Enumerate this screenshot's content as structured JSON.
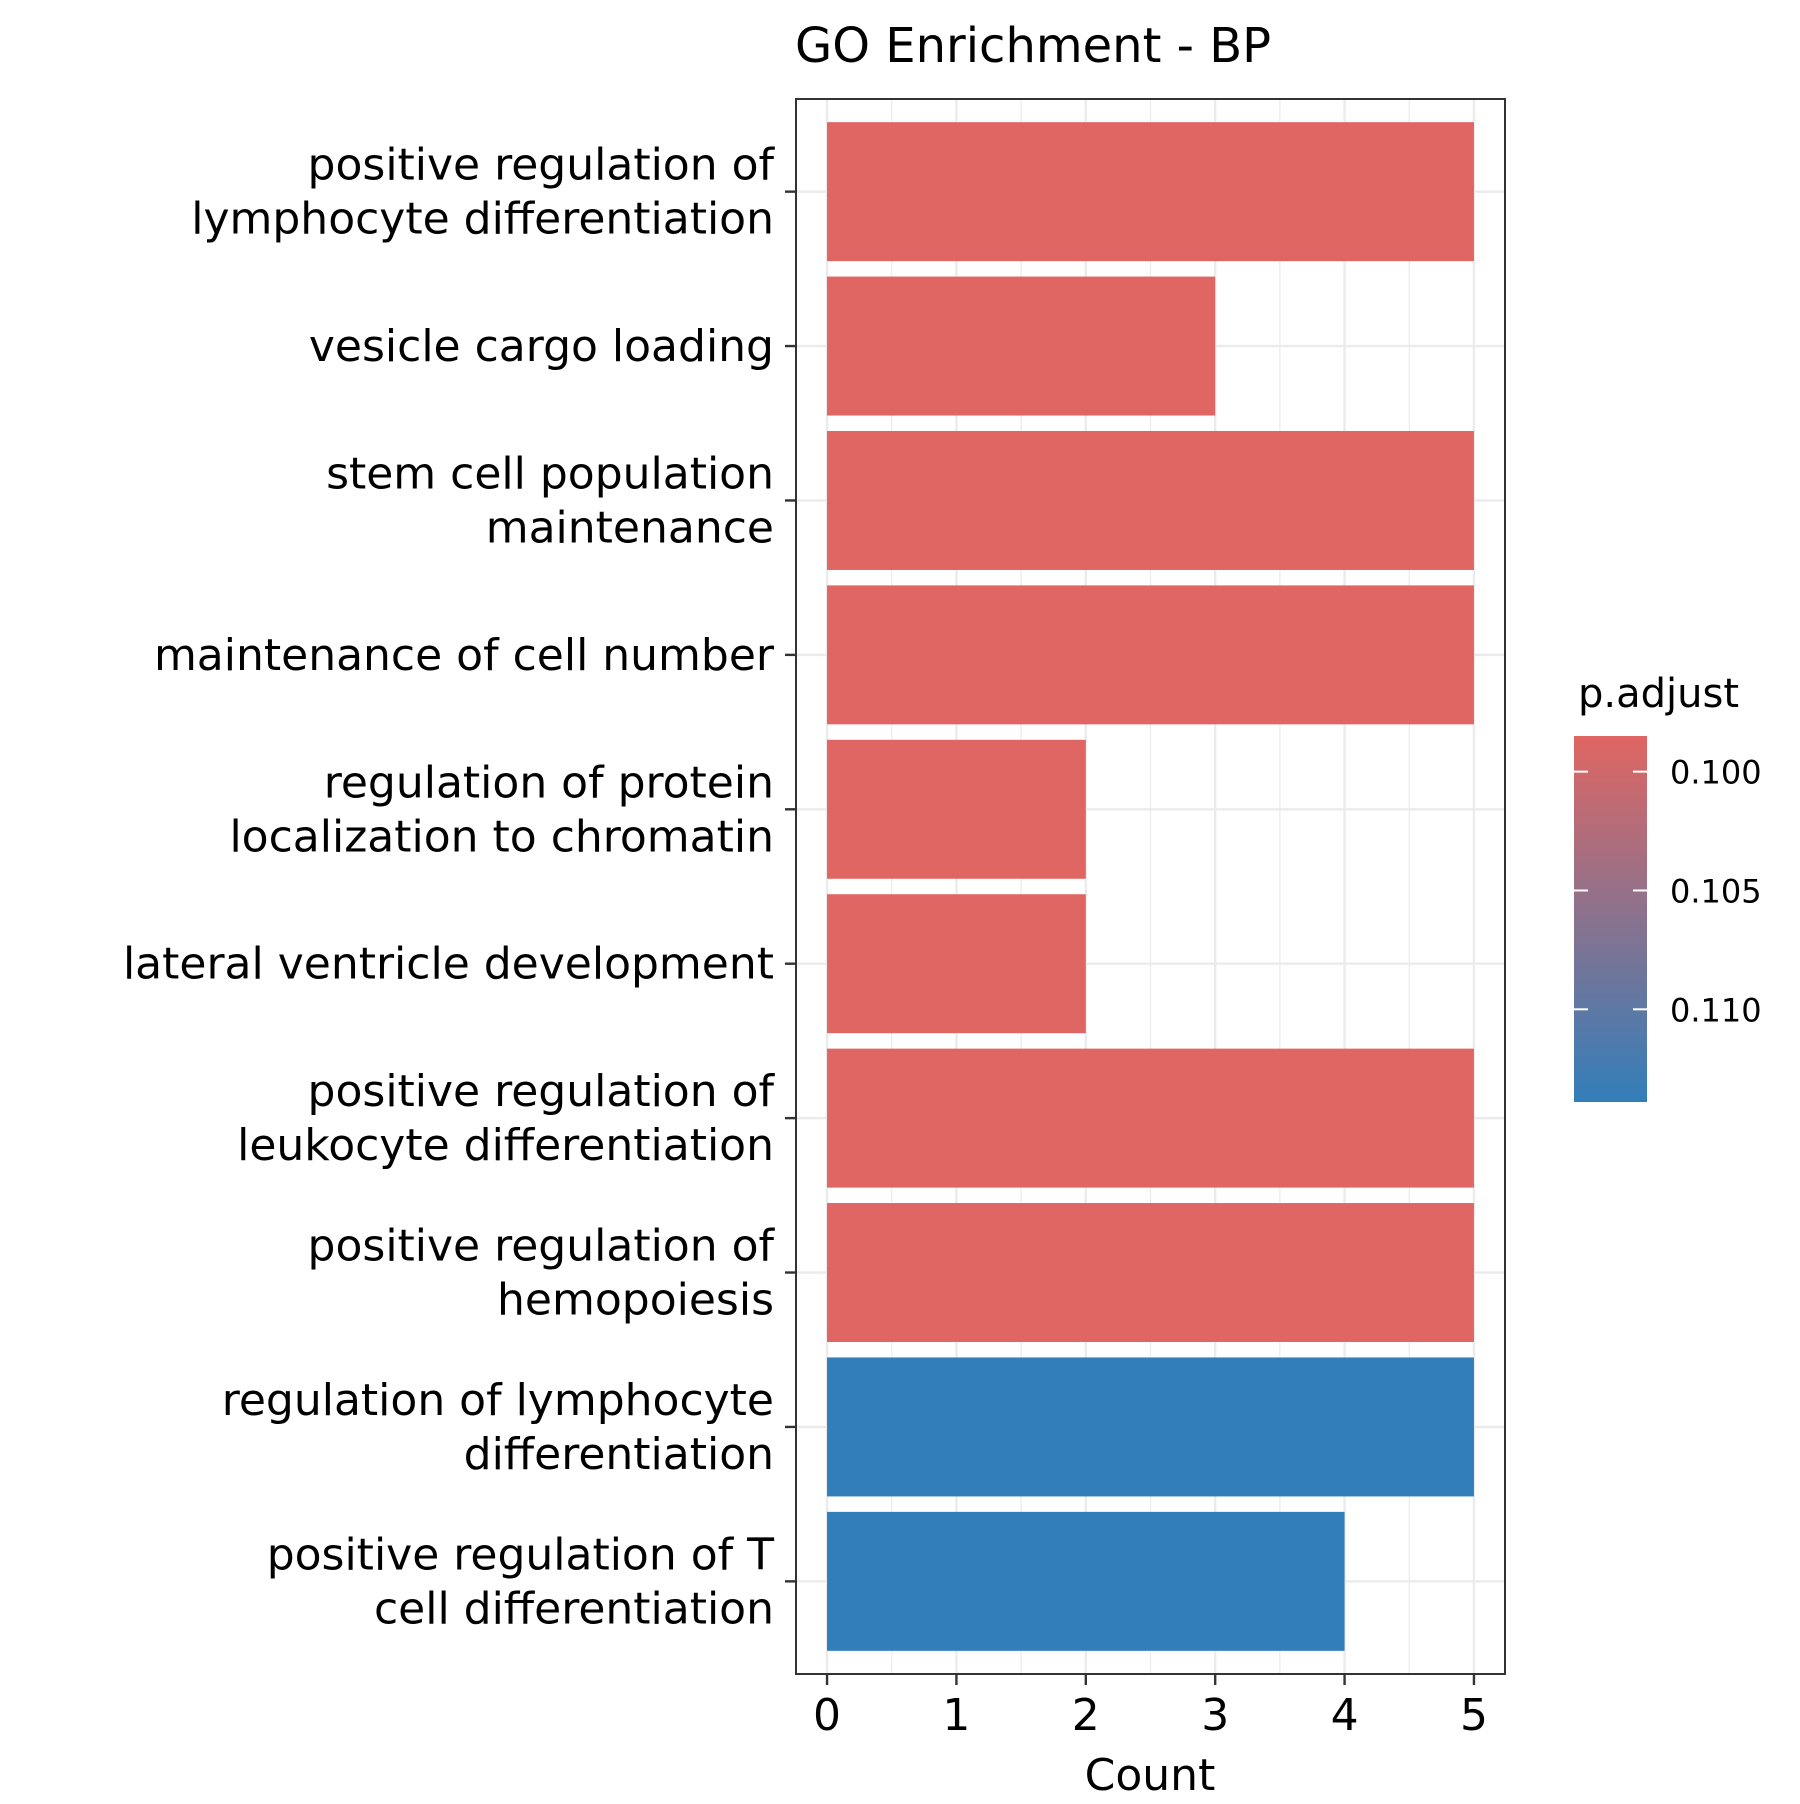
{
  "chart_data": {
    "type": "bar",
    "orientation": "horizontal",
    "title": "GO Enrichment - BP",
    "xlabel": "Count",
    "ylabel": "",
    "xlim": [
      -0.24,
      5.24
    ],
    "xticks": [
      0,
      1,
      2,
      3,
      4,
      5
    ],
    "grid": true,
    "categories": [
      [
        "positive regulation of",
        "lymphocyte differentiation"
      ],
      [
        "vesicle cargo loading"
      ],
      [
        "stem cell population",
        "maintenance"
      ],
      [
        "maintenance of cell number"
      ],
      [
        "regulation of protein",
        "localization to chromatin"
      ],
      [
        "lateral ventricle development"
      ],
      [
        "positive regulation of",
        "leukocyte differentiation"
      ],
      [
        "positive regulation of",
        "hemopoiesis"
      ],
      [
        "regulation of lymphocyte",
        "differentiation"
      ],
      [
        "positive regulation of T",
        "cell differentiation"
      ]
    ],
    "values": [
      5,
      3,
      5,
      5,
      2,
      2,
      5,
      5,
      5,
      4
    ],
    "p_adjust": [
      0.0985,
      0.0985,
      0.0985,
      0.0985,
      0.0985,
      0.0985,
      0.0985,
      0.0985,
      0.1139,
      0.1139
    ],
    "legend": {
      "title": "p.adjust",
      "position": "right",
      "ticks": [
        "0.100",
        "0.105",
        "0.110"
      ],
      "tick_values": [
        0.1,
        0.105,
        0.11
      ],
      "range": [
        0.0985,
        0.1139
      ],
      "low_color": "#E06663",
      "high_color": "#327EBA"
    }
  }
}
